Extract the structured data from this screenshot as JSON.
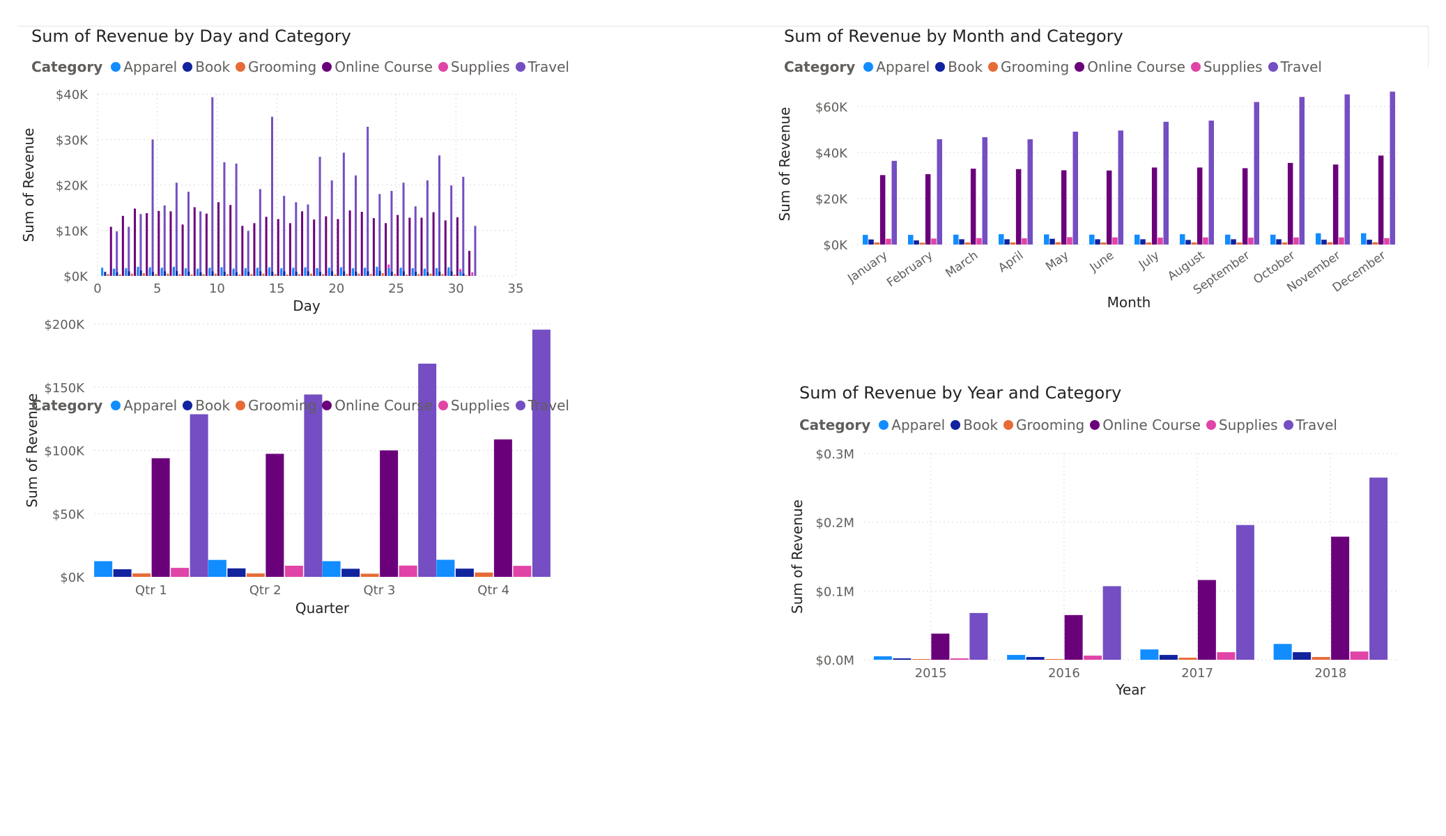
{
  "legend_title": "Category",
  "categories": [
    "Apparel",
    "Book",
    "Grooming",
    "Online Course",
    "Supplies",
    "Travel"
  ],
  "colors": [
    "#118DFF",
    "#12239E",
    "#E66C37",
    "#6B007B",
    "#E044A7",
    "#744EC2"
  ],
  "charts": {
    "day": {
      "title": "Sum of Revenue by Day and Category",
      "xlabel": "Day",
      "ylabel": "Sum of Revenue",
      "chart_data": {
        "type": "bar",
        "title": "Sum of Revenue by Day and Category",
        "xlabel": "Day",
        "ylabel": "Sum of Revenue",
        "x_axis": "numeric",
        "xlim": [
          0,
          35
        ],
        "xticks": [
          0,
          5,
          10,
          15,
          20,
          25,
          30,
          35
        ],
        "xtick_labels": [
          "0",
          "5",
          "10",
          "15",
          "20",
          "25",
          "30",
          "35"
        ],
        "ylim": [
          0,
          40000
        ],
        "yticks": [
          0,
          10000,
          20000,
          30000,
          40000
        ],
        "ytick_labels": [
          "$0K",
          "$10K",
          "$20K",
          "$30K",
          "$40K"
        ],
        "grid": true,
        "legend_position": "top-left",
        "x": [
          1,
          2,
          3,
          4,
          5,
          6,
          7,
          8,
          9,
          10,
          11,
          12,
          13,
          14,
          15,
          16,
          17,
          18,
          19,
          20,
          21,
          22,
          23,
          24,
          25,
          26,
          27,
          28,
          29,
          30,
          31
        ],
        "series": [
          {
            "name": "Apparel",
            "values": [
              1800,
              1600,
              1700,
              2000,
              1900,
              1800,
              2000,
              1700,
              1600,
              1800,
              1900,
              1600,
              1700,
              1800,
              1900,
              1700,
              1800,
              1900,
              1700,
              1800,
              1900,
              1700,
              1800,
              2000,
              1700,
              1800,
              1700,
              1600,
              1700,
              1900,
              1000
            ]
          },
          {
            "name": "Book",
            "values": [
              900,
              800,
              1000,
              1200,
              900,
              1000,
              1100,
              900,
              800,
              1000,
              900,
              800,
              900,
              1000,
              900,
              1000,
              900,
              1000,
              900,
              1000,
              1000,
              900,
              1000,
              1100,
              900,
              1000,
              900,
              800,
              900,
              1000,
              500
            ]
          },
          {
            "name": "Grooming",
            "values": [
              400,
              300,
              500,
              600,
              400,
              500,
              400,
              300,
              400,
              500,
              400,
              300,
              400,
              500,
              400,
              300,
              400,
              500,
              400,
              300,
              400,
              500,
              400,
              600,
              400,
              300,
              400,
              500,
              400,
              300,
              200
            ]
          },
          {
            "name": "Online Course",
            "values": [
              10800,
              13200,
              14800,
              13800,
              14300,
              14200,
              11300,
              15100,
              13700,
              16200,
              15600,
              11000,
              11600,
              13000,
              12500,
              11600,
              14200,
              12400,
              13100,
              12500,
              14400,
              14100,
              12700,
              11600,
              13400,
              12800,
              12800,
              14000,
              12200,
              12900,
              5500
            ]
          },
          {
            "name": "Supplies",
            "values": [
              1500,
              1200,
              1500,
              1500,
              1400,
              1700,
              1200,
              1300,
              1500,
              1800,
              1300,
              1200,
              1400,
              1500,
              1300,
              1400,
              1500,
              1700,
              1300,
              1500,
              1400,
              1600,
              1300,
              2500,
              1400,
              1500,
              1400,
              1700,
              1300,
              1500,
              800
            ]
          },
          {
            "name": "Travel",
            "values": [
              9800,
              10800,
              13600,
              30000,
              15500,
              20500,
              18500,
              14200,
              39300,
              25000,
              24700,
              9900,
              19100,
              35000,
              17600,
              16200,
              15700,
              26200,
              21000,
              27100,
              22100,
              32800,
              18000,
              18700,
              20500,
              15300,
              21000,
              26500,
              19900,
              21800,
              11000
            ]
          }
        ]
      }
    },
    "month": {
      "title": "Sum of Revenue by Month and Category",
      "xlabel": "Month",
      "ylabel": "Sum of Revenue",
      "chart_data": {
        "type": "bar",
        "title": "Sum of Revenue by Month and Category",
        "xlabel": "Month",
        "ylabel": "Sum of Revenue",
        "categories": [
          "January",
          "February",
          "March",
          "April",
          "May",
          "June",
          "July",
          "August",
          "September",
          "October",
          "November",
          "December"
        ],
        "ylim": [
          0,
          70000
        ],
        "yticks": [
          0,
          20000,
          40000,
          60000
        ],
        "ytick_labels": [
          "$0K",
          "$20K",
          "$40K",
          "$60K"
        ],
        "grid": true,
        "legend_position": "top-left",
        "series": [
          {
            "name": "Apparel",
            "values": [
              4200,
              4200,
              4300,
              4500,
              4400,
              4300,
              4300,
              4500,
              4300,
              4300,
              4900,
              4900
            ]
          },
          {
            "name": "Book",
            "values": [
              2200,
              1800,
              2300,
              2300,
              2500,
              2300,
              2300,
              2000,
              2300,
              2300,
              2100,
              2100
            ]
          },
          {
            "name": "Grooming",
            "values": [
              900,
              800,
              900,
              900,
              1000,
              900,
              900,
              900,
              900,
              900,
              1000,
              1000
            ]
          },
          {
            "name": "Online Course",
            "values": [
              30200,
              30600,
              33000,
              32800,
              32300,
              32200,
              33500,
              33500,
              33200,
              35500,
              34800,
              38700
            ]
          },
          {
            "name": "Supplies",
            "values": [
              2500,
              2600,
              2800,
              2700,
              3200,
              3100,
              3000,
              3100,
              3000,
              3100,
              3100,
              2800
            ]
          },
          {
            "name": "Travel",
            "values": [
              36400,
              45800,
              46700,
              45800,
              49100,
              49600,
              53400,
              53900,
              62000,
              64200,
              65300,
              66500
            ]
          }
        ]
      }
    },
    "quarter": {
      "title": "",
      "xlabel": "Quarter",
      "ylabel": "Sum of Revenue",
      "chart_data": {
        "type": "bar",
        "title": "",
        "xlabel": "Quarter",
        "ylabel": "Sum of Revenue",
        "categories": [
          "Qtr 1",
          "Qtr 2",
          "Qtr 3",
          "Qtr 4"
        ],
        "ylim": [
          0,
          200000
        ],
        "yticks": [
          0,
          50000,
          100000,
          150000,
          200000
        ],
        "ytick_labels": [
          "$0K",
          "$50K",
          "$100K",
          "$150K",
          "$200K"
        ],
        "grid": true,
        "legend_position": "top-left",
        "series": [
          {
            "name": "Apparel",
            "values": [
              12400,
              13400,
              12400,
              13500
            ]
          },
          {
            "name": "Book",
            "values": [
              6000,
              6700,
              6400,
              6500
            ]
          },
          {
            "name": "Grooming",
            "values": [
              2700,
              2700,
              2500,
              3400
            ]
          },
          {
            "name": "Online Course",
            "values": [
              93800,
              97300,
              100000,
              108700
            ]
          },
          {
            "name": "Supplies",
            "values": [
              7100,
              8800,
              8900,
              8700
            ]
          },
          {
            "name": "Travel",
            "values": [
              128600,
              144200,
              168600,
              195500
            ]
          }
        ]
      }
    },
    "year": {
      "title": "Sum of Revenue by Year and Category",
      "xlabel": "Year",
      "ylabel": "Sum of Revenue",
      "chart_data": {
        "type": "bar",
        "title": "Sum of Revenue by Year and Category",
        "xlabel": "Year",
        "ylabel": "Sum of Revenue",
        "categories": [
          "2015",
          "2016",
          "2017",
          "2018"
        ],
        "ylim": [
          0,
          0.3
        ],
        "yticks": [
          0,
          0.1,
          0.2,
          0.3
        ],
        "ytick_labels": [
          "$0.0M",
          "$0.1M",
          "$0.2M",
          "$0.3M"
        ],
        "y_unit": "millions of dollars",
        "grid": true,
        "legend_position": "top-left",
        "series": [
          {
            "name": "Apparel",
            "values": [
              0.005,
              0.007,
              0.015,
              0.023
            ]
          },
          {
            "name": "Book",
            "values": [
              0.002,
              0.004,
              0.007,
              0.011
            ]
          },
          {
            "name": "Grooming",
            "values": [
              0.001,
              0.001,
              0.003,
              0.004
            ]
          },
          {
            "name": "Online Course",
            "values": [
              0.038,
              0.065,
              0.116,
              0.179
            ]
          },
          {
            "name": "Supplies",
            "values": [
              0.002,
              0.006,
              0.011,
              0.012
            ]
          },
          {
            "name": "Travel",
            "values": [
              0.068,
              0.107,
              0.196,
              0.265
            ]
          }
        ]
      }
    }
  }
}
